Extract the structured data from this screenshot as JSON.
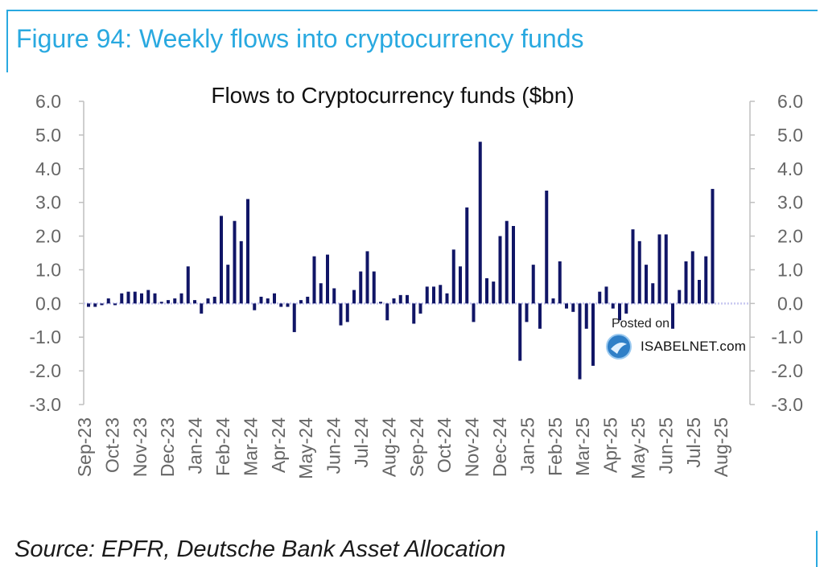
{
  "figure_title": "Figure 94: Weekly flows into cryptocurrency funds",
  "source": "Source: EPFR, Deutsche Bank Asset Allocation",
  "watermark": {
    "posted_on": "Posted on",
    "site": "ISABELNET.com"
  },
  "colors": {
    "accent": "#29a9e0",
    "bar": "#101566",
    "axis": "#bfbfbf",
    "zero_line": "#c7c7f0",
    "tick_text": "#666666"
  },
  "chart_data": {
    "type": "bar",
    "title": "Flows to Cryptocurrency funds ($bn)",
    "ylim": [
      -3,
      6
    ],
    "yticks": [
      "6.0",
      "5.0",
      "4.0",
      "3.0",
      "2.0",
      "1.0",
      "0.0",
      "-1.0",
      "-2.0",
      "-3.0"
    ],
    "ytick_values": [
      6,
      5,
      4,
      3,
      2,
      1,
      0,
      -1,
      -2,
      -3
    ],
    "y_axes": "left and right",
    "x_tick_labels": [
      "Sep-23",
      "Oct-23",
      "Nov-23",
      "Dec-23",
      "Jan-24",
      "Feb-24",
      "Mar-24",
      "Apr-24",
      "May-24",
      "Jun-24",
      "Jul-24",
      "Aug-24",
      "Sep-24",
      "Oct-24",
      "Nov-24",
      "Dec-24",
      "Jan-25",
      "Feb-25",
      "Mar-25",
      "Apr-25",
      "May-25",
      "Jun-25",
      "Jul-25",
      "Aug-25"
    ],
    "legend": "none",
    "grid": false,
    "series": [
      {
        "values": [
          -0.1,
          -0.1,
          -0.05,
          0.15,
          -0.05,
          0.3,
          0.35,
          0.35,
          0.3,
          0.4,
          0.3,
          0.05,
          0.1,
          0.15,
          0.3,
          1.1,
          0.1,
          -0.3,
          0.15,
          0.2,
          2.6,
          1.15,
          2.45,
          1.85,
          3.1,
          -0.2,
          0.2,
          0.15,
          0.3,
          -0.1,
          -0.1,
          -0.85,
          0.1,
          0.2,
          1.4,
          0.6,
          1.45,
          0.45,
          -0.65,
          -0.55,
          0.4,
          0.95,
          1.55,
          0.95,
          0.05,
          -0.5,
          0.15,
          0.25,
          0.25,
          -0.6,
          -0.3,
          0.5,
          0.5,
          0.55,
          0.3,
          1.6,
          1.1,
          2.85,
          -0.55,
          4.8,
          0.75,
          0.65,
          2.0,
          2.45,
          2.3,
          -1.7,
          -0.55,
          1.15,
          -0.75,
          3.35,
          0.15,
          1.25,
          -0.15,
          -0.25,
          -2.25,
          -0.75,
          -1.85,
          0.35,
          0.5,
          -0.15,
          -0.5,
          -0.3,
          2.2,
          1.85,
          1.15,
          0.6,
          2.05,
          2.05,
          -0.75,
          0.4,
          1.25,
          1.55,
          0.7,
          1.4,
          3.4
        ]
      }
    ]
  }
}
